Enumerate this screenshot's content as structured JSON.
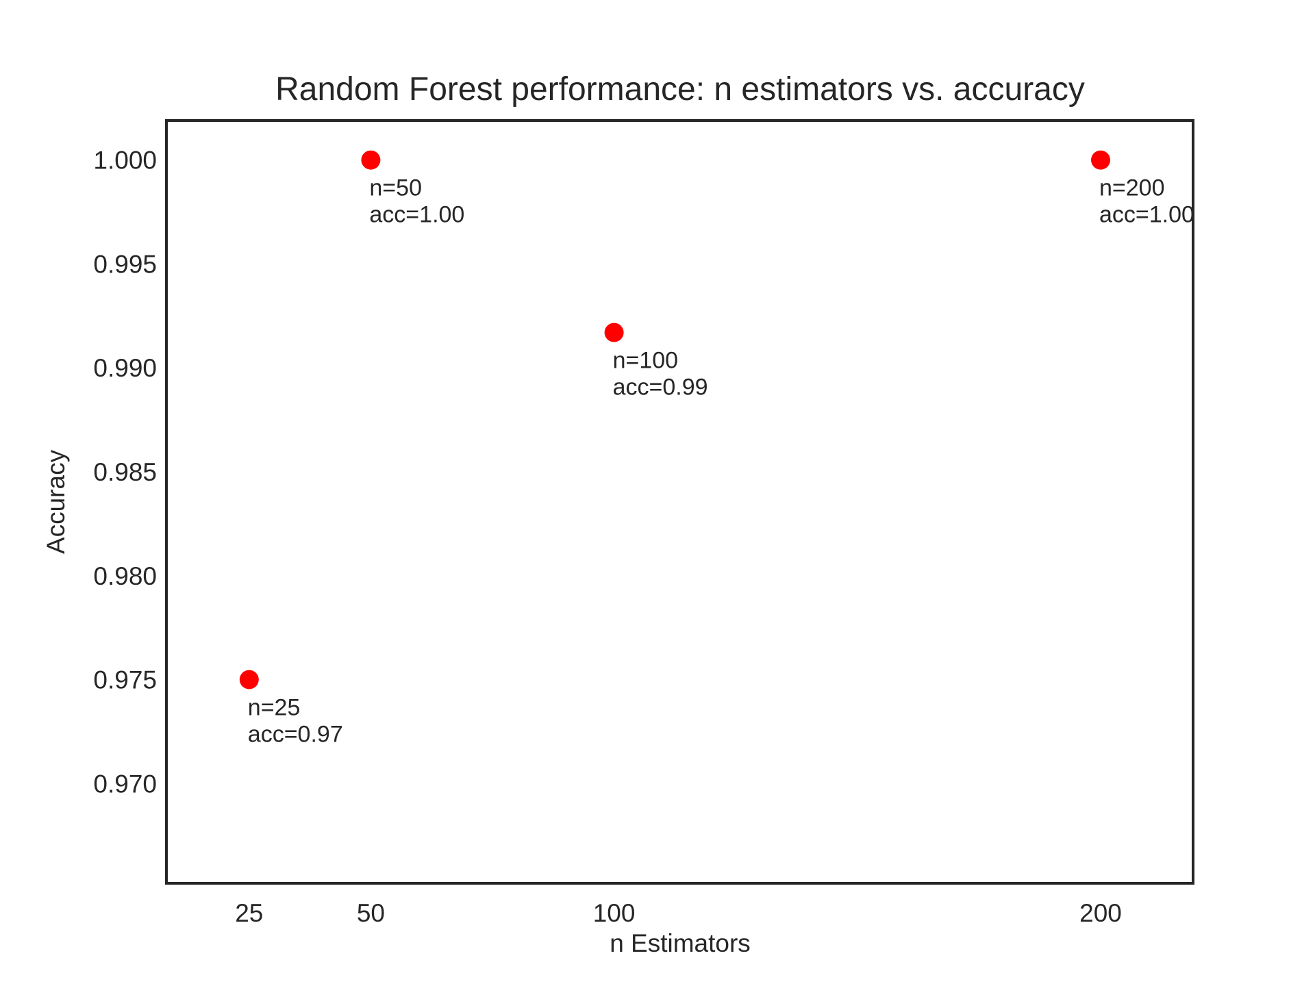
{
  "chart_data": {
    "type": "scatter",
    "title": "Random Forest performance: n estimators vs. accuracy",
    "xlabel": "n Estimators",
    "ylabel": "Accuracy",
    "xlim": [
      8,
      219
    ],
    "ylim": [
      0.9652,
      1.0019
    ],
    "x_ticks": [
      25,
      50,
      100,
      200
    ],
    "x_tick_labels": [
      "25",
      "50",
      "100",
      "200"
    ],
    "y_ticks": [
      0.97,
      0.975,
      0.98,
      0.985,
      0.99,
      0.995,
      1.0
    ],
    "y_tick_labels": [
      "0.970",
      "0.975",
      "0.980",
      "0.985",
      "0.990",
      "0.995",
      "1.000"
    ],
    "grid": false,
    "legend": "none",
    "point_color": "#ff0000",
    "points": [
      {
        "x": 25,
        "y": 0.975,
        "label_line1": "n=25",
        "label_line2": "acc=0.97"
      },
      {
        "x": 50,
        "y": 1.0,
        "label_line1": "n=50",
        "label_line2": "acc=1.00"
      },
      {
        "x": 100,
        "y": 0.9917,
        "label_line1": "n=100",
        "label_line2": "acc=0.99"
      },
      {
        "x": 200,
        "y": 1.0,
        "label_line1": "n=200",
        "label_line2": "acc=1.00"
      }
    ]
  }
}
